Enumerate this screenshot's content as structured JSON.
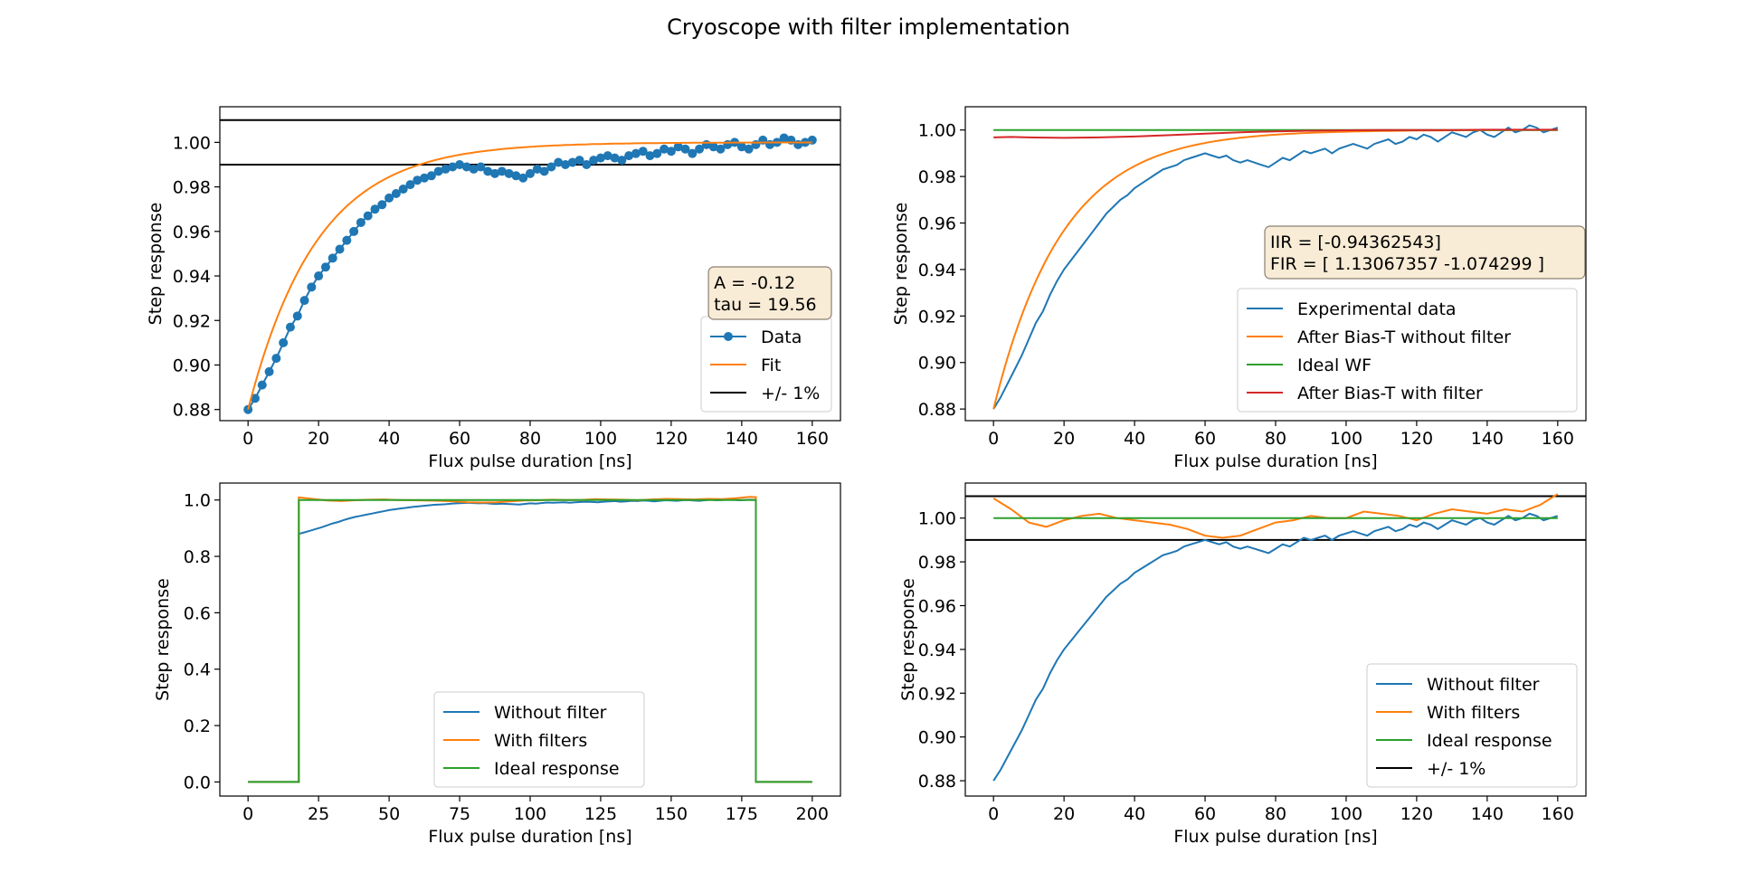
{
  "figure": {
    "title": "Cryoscope with filter implementation"
  },
  "colors": {
    "blue": "#1f77b4",
    "orange": "#ff7f0e",
    "green": "#2ca02c",
    "red": "#d62728",
    "black": "#000000",
    "annotation_bg": "#f9ecd6",
    "annotation_edge": "#8c7f72"
  },
  "chart_data": [
    {
      "type": "line",
      "xlabel": "Flux pulse duration [ns]",
      "ylabel": "Step response",
      "xlim": [
        -8,
        168
      ],
      "ylim": [
        0.875,
        1.016
      ],
      "xticks": [
        0,
        20,
        40,
        60,
        80,
        100,
        120,
        140,
        160
      ],
      "yticks": [
        0.88,
        0.9,
        0.92,
        0.94,
        0.96,
        0.98,
        1.0
      ],
      "ytick_labels": [
        "0.88",
        "0.90",
        "0.92",
        "0.94",
        "0.96",
        "0.98",
        "1.00"
      ],
      "hlines": [
        1.01,
        0.99
      ],
      "annotation": [
        "A = -0.12",
        "tau = 19.56"
      ],
      "legend_position": "lower-right",
      "legend": [
        "Data",
        "Fit",
        "+/- 1%"
      ],
      "series": [
        {
          "name": "Data",
          "color": "#1f77b4",
          "marker": "circle",
          "x": [
            0,
            2,
            4,
            6,
            8,
            10,
            12,
            14,
            16,
            18,
            20,
            22,
            24,
            26,
            28,
            30,
            32,
            34,
            36,
            38,
            40,
            42,
            44,
            46,
            48,
            50,
            52,
            54,
            56,
            58,
            60,
            62,
            64,
            66,
            68,
            70,
            72,
            74,
            76,
            78,
            80,
            82,
            84,
            86,
            88,
            90,
            92,
            94,
            96,
            98,
            100,
            102,
            104,
            106,
            108,
            110,
            112,
            114,
            116,
            118,
            120,
            122,
            124,
            126,
            128,
            130,
            132,
            134,
            136,
            138,
            140,
            142,
            144,
            146,
            148,
            150,
            152,
            154,
            156,
            158,
            160
          ],
          "y": [
            0.88,
            0.885,
            0.891,
            0.897,
            0.903,
            0.91,
            0.917,
            0.922,
            0.929,
            0.935,
            0.94,
            0.944,
            0.948,
            0.952,
            0.956,
            0.96,
            0.964,
            0.967,
            0.97,
            0.972,
            0.975,
            0.977,
            0.979,
            0.981,
            0.983,
            0.984,
            0.985,
            0.987,
            0.988,
            0.989,
            0.99,
            0.989,
            0.988,
            0.989,
            0.987,
            0.986,
            0.987,
            0.986,
            0.985,
            0.984,
            0.986,
            0.988,
            0.987,
            0.989,
            0.991,
            0.99,
            0.991,
            0.992,
            0.99,
            0.992,
            0.993,
            0.994,
            0.993,
            0.992,
            0.994,
            0.995,
            0.996,
            0.994,
            0.995,
            0.997,
            0.996,
            0.998,
            0.997,
            0.995,
            0.997,
            0.999,
            0.998,
            0.997,
            0.999,
            1.0,
            0.998,
            0.997,
            0.999,
            1.001,
            0.999,
            1.0,
            1.002,
            1.001,
            0.999,
            1.0,
            1.001
          ]
        },
        {
          "name": "Fit",
          "color": "#ff7f0e",
          "fit": {
            "A": -0.12,
            "tau": 19.56,
            "offset": 1.0
          }
        },
        {
          "name": "+/- 1%",
          "color": "#000000"
        }
      ]
    },
    {
      "type": "line",
      "xlabel": "Flux pulse duration [ns]",
      "ylabel": "Step response",
      "xlim": [
        -8,
        168
      ],
      "ylim": [
        0.875,
        1.01
      ],
      "xticks": [
        0,
        20,
        40,
        60,
        80,
        100,
        120,
        140,
        160
      ],
      "yticks": [
        0.88,
        0.9,
        0.92,
        0.94,
        0.96,
        0.98,
        1.0
      ],
      "ytick_labels": [
        "0.88",
        "0.90",
        "0.92",
        "0.94",
        "0.96",
        "0.98",
        "1.00"
      ],
      "annotation": [
        "IIR = [-0.94362543]",
        "FIR = [ 1.13067357 -1.074299  ]"
      ],
      "legend_position": "lower-right",
      "legend": [
        "Experimental data",
        "After Bias-T without filter",
        "Ideal WF",
        "After Bias-T with filter"
      ],
      "series": [
        {
          "name": "Experimental data",
          "color": "#1f77b4",
          "ref": "data0"
        },
        {
          "name": "After Bias-T without filter",
          "color": "#ff7f0e",
          "fit": {
            "A": -0.12,
            "tau": 19.56,
            "offset": 1.0
          }
        },
        {
          "name": "Ideal WF",
          "color": "#2ca02c",
          "const": 1.0
        },
        {
          "name": "After Bias-T with filter",
          "color": "#d62728",
          "x": [
            0,
            5,
            10,
            20,
            30,
            40,
            50,
            60,
            70,
            80,
            90,
            100,
            110,
            120,
            130,
            140,
            150,
            160
          ],
          "y": [
            0.9968,
            0.997,
            0.9968,
            0.9966,
            0.9968,
            0.9972,
            0.9978,
            0.9984,
            0.999,
            0.9994,
            0.9997,
            0.9999,
            1.0,
            1.0,
            1.0,
            1.0001,
            1.0001,
            1.0001
          ]
        }
      ]
    },
    {
      "type": "line",
      "xlabel": "Flux pulse duration [ns]",
      "ylabel": "Step response",
      "xlim": [
        -10,
        210
      ],
      "ylim": [
        -0.05,
        1.06
      ],
      "xticks": [
        0,
        25,
        50,
        75,
        100,
        125,
        150,
        175,
        200
      ],
      "yticks": [
        0.0,
        0.2,
        0.4,
        0.6,
        0.8,
        1.0
      ],
      "ytick_labels": [
        "0.0",
        "0.2",
        "0.4",
        "0.6",
        "0.8",
        "1.0"
      ],
      "legend_position": "lower-center",
      "legend": [
        "Without filter",
        "With filters",
        "Ideal response"
      ],
      "series": [
        {
          "name": "Without filter",
          "color": "#1f77b4",
          "pulse": {
            "start": 18,
            "end": 180,
            "shape": "data0"
          }
        },
        {
          "name": "With filters",
          "color": "#ff7f0e",
          "pulse": {
            "start": 18,
            "end": 180,
            "shape": "filtered"
          }
        },
        {
          "name": "Ideal response",
          "color": "#2ca02c",
          "pulse": {
            "start": 18,
            "end": 180,
            "shape": "ideal"
          }
        }
      ]
    },
    {
      "type": "line",
      "xlabel": "Flux pulse duration [ns]",
      "ylabel": "Step response",
      "xlim": [
        -8,
        168
      ],
      "ylim": [
        0.873,
        1.016
      ],
      "xticks": [
        0,
        20,
        40,
        60,
        80,
        100,
        120,
        140,
        160
      ],
      "yticks": [
        0.88,
        0.9,
        0.92,
        0.94,
        0.96,
        0.98,
        1.0
      ],
      "ytick_labels": [
        "0.88",
        "0.90",
        "0.92",
        "0.94",
        "0.96",
        "0.98",
        "1.00"
      ],
      "hlines": [
        1.01,
        0.99
      ],
      "legend_position": "lower-right",
      "legend": [
        "Without filter",
        "With filters",
        "Ideal response",
        "+/- 1%"
      ],
      "series": [
        {
          "name": "Without filter",
          "color": "#1f77b4",
          "ref": "data0"
        },
        {
          "name": "With filters",
          "color": "#ff7f0e",
          "x": [
            0,
            5,
            10,
            15,
            20,
            25,
            30,
            35,
            40,
            45,
            50,
            55,
            60,
            65,
            70,
            75,
            80,
            85,
            90,
            95,
            100,
            105,
            110,
            115,
            120,
            125,
            130,
            135,
            140,
            145,
            150,
            155,
            160
          ],
          "y": [
            1.009,
            1.004,
            0.998,
            0.996,
            0.999,
            1.001,
            1.002,
            1.0,
            0.999,
            0.998,
            0.997,
            0.995,
            0.992,
            0.991,
            0.992,
            0.995,
            0.998,
            0.999,
            1.001,
            1.0,
            1.0,
            1.003,
            1.002,
            1.001,
            0.999,
            1.002,
            1.004,
            1.003,
            1.002,
            1.004,
            1.003,
            1.006,
            1.011
          ]
        },
        {
          "name": "Ideal response",
          "color": "#2ca02c",
          "const": 1.0
        },
        {
          "name": "+/- 1%",
          "color": "#000000"
        }
      ]
    }
  ]
}
